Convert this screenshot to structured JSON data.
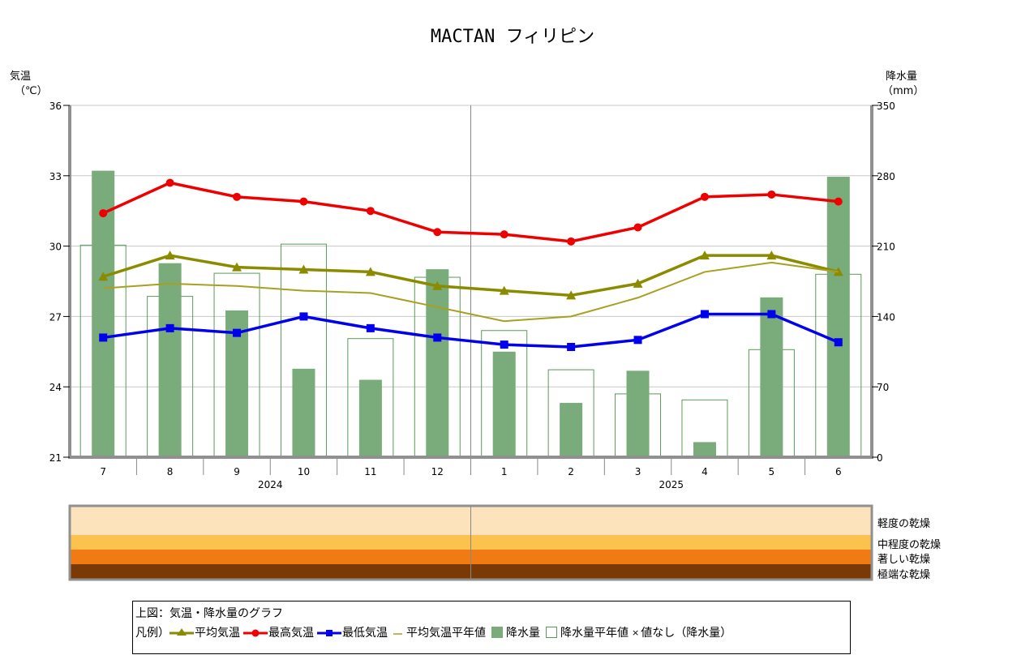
{
  "chart_data": {
    "type": "bar+line",
    "title": "MACTAN フィリピン",
    "categories": [
      "7",
      "8",
      "9",
      "10",
      "11",
      "12",
      "1",
      "2",
      "3",
      "4",
      "5",
      "6"
    ],
    "year_labels": [
      {
        "label": "2024",
        "between": [
          "9",
          "10"
        ]
      },
      {
        "label": "2025",
        "between": [
          "3",
          "4"
        ]
      }
    ],
    "left_axis": {
      "label_line1": "気温",
      "label_line2": "（℃）",
      "ticks": [
        21,
        24,
        27,
        30,
        33,
        36
      ],
      "ylim": [
        21,
        36
      ]
    },
    "right_axis": {
      "label_line1": "降水量",
      "label_line2": "（mm）",
      "ticks": [
        0,
        70,
        140,
        210,
        280,
        350
      ],
      "ylim": [
        0,
        350
      ]
    },
    "series": [
      {
        "name": "平均気温",
        "kind": "line",
        "axis": "left",
        "color": "#8b8b00",
        "marker": "triangle",
        "values": [
          28.7,
          29.6,
          29.1,
          29.0,
          28.9,
          28.3,
          28.1,
          27.9,
          28.4,
          29.6,
          29.6,
          28.9
        ]
      },
      {
        "name": "最高気温",
        "kind": "line",
        "axis": "left",
        "color": "#ee0000",
        "marker": "circle",
        "values": [
          31.4,
          32.7,
          32.1,
          31.9,
          31.5,
          30.6,
          30.5,
          30.2,
          30.8,
          32.1,
          32.2,
          31.9
        ]
      },
      {
        "name": "最低気温",
        "kind": "line",
        "axis": "left",
        "color": "#0000ee",
        "marker": "square",
        "values": [
          26.1,
          26.5,
          26.3,
          27.0,
          26.5,
          26.1,
          25.8,
          25.7,
          26.0,
          27.1,
          27.1,
          25.9
        ]
      },
      {
        "name": "平均気温平年値",
        "kind": "thin-line",
        "axis": "left",
        "color": "#a8a020",
        "values": [
          28.2,
          28.4,
          28.3,
          28.1,
          28.0,
          27.4,
          26.8,
          27.0,
          27.8,
          28.9,
          29.3,
          28.9
        ]
      },
      {
        "name": "降水量",
        "kind": "bar",
        "axis": "right",
        "color": "#7aab7a",
        "values": [
          285,
          193,
          146,
          88,
          77,
          187,
          105,
          54,
          86,
          15,
          159,
          279
        ]
      },
      {
        "name": "降水量平年値",
        "kind": "hollow-bar",
        "axis": "right",
        "color": "#5a9a5a",
        "values": [
          211,
          160,
          183,
          212,
          118,
          179,
          126,
          87,
          63,
          57,
          107,
          182
        ]
      }
    ],
    "drought_index": {
      "bands": [
        {
          "label": "軽度の乾燥",
          "color": "#fde3bb"
        },
        {
          "label": "中程度の乾燥",
          "color": "#fbc24d"
        },
        {
          "label": "著しい乾燥",
          "color": "#f07b14"
        },
        {
          "label": "極端な乾燥",
          "color": "#7b3a05"
        }
      ]
    }
  },
  "legend": {
    "title": "上図：気温・降水量のグラフ",
    "prefix": "凡例）",
    "avg_temp": "平均気温",
    "max_temp": "最高気温",
    "min_temp": "最低気温",
    "avg_temp_normal": "平均気温平年値",
    "precip": "降水量",
    "precip_normal": "降水量平年値",
    "no_value": "値なし（降水量）",
    "no_value_mark": "×"
  }
}
